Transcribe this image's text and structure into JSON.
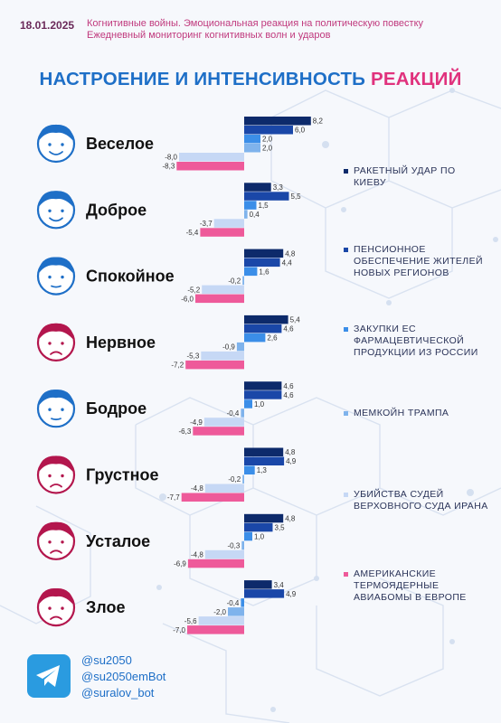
{
  "header": {
    "date": "18.01.2025",
    "line1": "Когнитивные войны. Эмоциональная реакция на политическую повестку",
    "line2": "Ежедневный мониторинг когнитивных волн и ударов"
  },
  "title": {
    "part1": "НАСТРОЕНИЕ И ИНТЕНСИВНОСТЬ",
    "part2": "РЕАКЦИЙ"
  },
  "chart_data": {
    "type": "bar",
    "orientation": "horizontal",
    "categories": [
      "Веселое",
      "Доброе",
      "Спокойное",
      "Нервное",
      "Бодрое",
      "Грустное",
      "Усталое",
      "Злое"
    ],
    "series": [
      {
        "name": "РАКЕТНЫЙ УДАР ПО КИЕВУ",
        "color": "#0d2a6b",
        "values": [
          8.2,
          3.3,
          4.8,
          5.4,
          4.6,
          4.8,
          4.8,
          3.4
        ]
      },
      {
        "name": "ПЕНСИОННОЕ ОБЕСПЕЧЕНИЕ ЖИТЕЛЕЙ НОВЫХ РЕГИОНОВ",
        "color": "#1a47a8",
        "values": [
          6.0,
          5.5,
          4.4,
          4.6,
          4.6,
          4.9,
          3.5,
          4.9
        ]
      },
      {
        "name": "ЗАКУПКИ ЕС ФАРМАЦЕВТИЧЕСКОЙ ПРОДУКЦИИ ИЗ РОССИИ",
        "color": "#3b8ee8",
        "values": [
          2.0,
          1.5,
          1.6,
          2.6,
          1.0,
          1.3,
          1.0,
          -0.4
        ]
      },
      {
        "name": "МЕМКОЙН ТРАМПА",
        "color": "#7fb3ec",
        "values": [
          2.0,
          0.4,
          -0.2,
          -0.9,
          -0.4,
          -0.2,
          -0.3,
          -2.0
        ]
      },
      {
        "name": "УБИЙСТВА СУДЕЙ ВЕРХОВНОГО СУДА ИРАНА",
        "color": "#c6d8f5",
        "values": [
          -8.0,
          -3.7,
          -5.2,
          -5.3,
          -4.9,
          -4.8,
          -4.8,
          -5.6
        ]
      },
      {
        "name": "АМЕРИКАНСКИЕ ТЕРМОЯДЕРНЫЕ АВИАБОМЫ В ЕВРОПЕ",
        "color": "#ee5a9a",
        "values": [
          -8.3,
          -5.4,
          -6.0,
          -7.2,
          -6.3,
          -7.7,
          -6.9,
          -7.0
        ]
      }
    ],
    "value_labels": [
      [
        "8,2",
        "6,0",
        "2,0",
        "2,0",
        "-8,0",
        "-8,3"
      ],
      [
        "3,3",
        "5,5",
        "1,5",
        "0,4",
        "-3,7",
        "-5,4"
      ],
      [
        "4,8",
        "4,4",
        "1,6",
        "-0,2",
        "-5,2",
        "-6,0"
      ],
      [
        "5,4",
        "4,6",
        "2,6",
        "-0,9",
        "-5,3",
        "-7,2"
      ],
      [
        "4,6",
        "4,6",
        "1,0",
        "-0,4",
        "-4,9",
        "-6,3"
      ],
      [
        "4,8",
        "4,9",
        "1,3",
        "-0,2",
        "-4,8",
        "-7,7"
      ],
      [
        "4,8",
        "3,5",
        "1,0",
        "-0,3",
        "-4,8",
        "-6,9"
      ],
      [
        "3,4",
        "4,9",
        "-0,4",
        "-2,0",
        "-5,6",
        "-7,0"
      ]
    ],
    "face_colors": [
      "#1e6fc7",
      "#1e6fc7",
      "#1e6fc7",
      "#b3164d",
      "#1e6fc7",
      "#b3164d",
      "#b3164d",
      "#b3164d"
    ],
    "legend_position": "right",
    "grid": false
  },
  "footer": {
    "icon": "telegram-icon",
    "handles": [
      "@su2050",
      "@su2050emBot",
      "@suralov_bot"
    ]
  }
}
